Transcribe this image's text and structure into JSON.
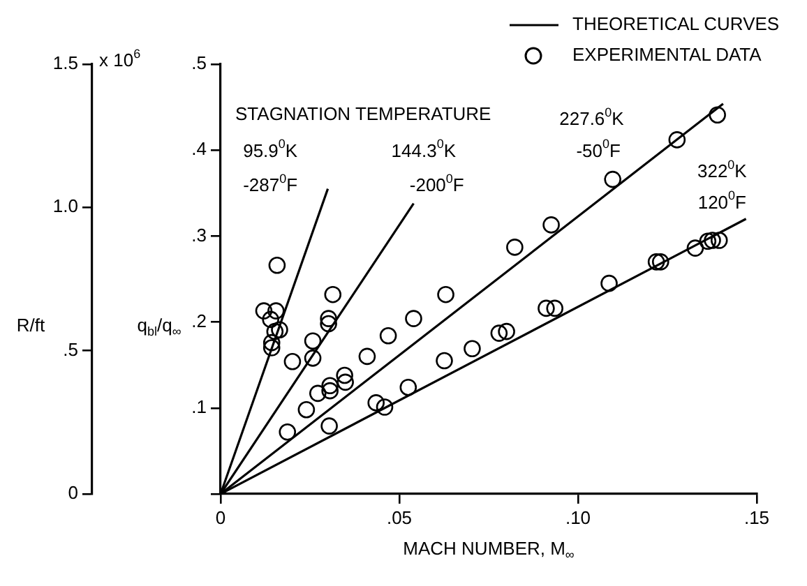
{
  "chart_data": {
    "type": "scatter",
    "xlabel": "MACH NUMBER, M$_{∞}$",
    "ylabel": "q$_{bl}$/q$_{∞}$",
    "y2label": "R/ft",
    "xlim": [
      0,
      0.15
    ],
    "xticks": [
      {
        "value": 0,
        "label": "0"
      },
      {
        "value": 0.05,
        "label": ".05"
      },
      {
        "value": 0.1,
        "label": ".10"
      },
      {
        "value": 0.15,
        "label": ".15"
      }
    ],
    "ylim": [
      0,
      0.5
    ],
    "yticks": [
      {
        "value": 0,
        "label": null
      },
      {
        "value": 0.1,
        "label": ".1"
      },
      {
        "value": 0.2,
        "label": ".2"
      },
      {
        "value": 0.3,
        "label": ".3"
      },
      {
        "value": 0.4,
        "label": ".4"
      },
      {
        "value": 0.5,
        "label": ".5"
      }
    ],
    "y2lim": [
      0,
      1.5
    ],
    "y2ticks": [
      {
        "value": 0,
        "label": "0"
      },
      {
        "value": 0.5,
        "label": ".5"
      },
      {
        "value": 1.0,
        "label": "1.0"
      },
      {
        "value": 1.5,
        "label": "1.5"
      }
    ],
    "grid": false,
    "legend": "top right",
    "marker": "circle",
    "line_style": "solid",
    "annotations": [
      "STAGNATION TEMPERATURE",
      "95.9$^{0}$K",
      "-287$^{0}$F",
      "144.3$^{0}$K",
      "-200$^{0}$F",
      "227.6$^{0}$K",
      "-50$^{0}$F",
      "322$^{0}$K",
      "120$^{0}$F",
      "x 10$^{6}$"
    ],
    "series": [
      {
        "type": "line",
        "name": "THEORETICAL CURVES",
        "marker": "none",
        "color": "#000000",
        "x": [
          0,
          0.03
        ],
        "values": [
          0,
          0.355
        ]
      },
      {
        "type": "line",
        "marker": "none",
        "color": "#000000",
        "x": [
          0,
          0.054
        ],
        "values": [
          0,
          0.338
        ]
      },
      {
        "type": "line",
        "marker": "none",
        "color": "#000000",
        "x": [
          0,
          0.1406
        ],
        "values": [
          0,
          0.454
        ]
      },
      {
        "type": "line",
        "marker": "none",
        "color": "#000000",
        "x": [
          0,
          0.147
        ],
        "values": [
          0,
          0.32
        ]
      },
      {
        "type": "scatter",
        "name": "EXPERIMENTAL DATA",
        "color": "#000000",
        "x": [
          0.0158,
          0.0121,
          0.0155,
          0.014,
          0.0152,
          0.0165,
          0.0143,
          0.0143
        ],
        "values": [
          0.266,
          0.213,
          0.213,
          0.203,
          0.189,
          0.191,
          0.176,
          0.17
        ]
      },
      {
        "type": "scatter",
        "color": "#000000",
        "x": [
          0.0201,
          0.0258,
          0.0258,
          0.0302,
          0.0302,
          0.0314
        ],
        "values": [
          0.154,
          0.178,
          0.158,
          0.204,
          0.198,
          0.232
        ]
      },
      {
        "type": "scatter",
        "color": "#000000",
        "x": [
          0.0187,
          0.024,
          0.0272,
          0.0306,
          0.0306,
          0.0347,
          0.0349,
          0.041,
          0.0469,
          0.054,
          0.063,
          0.0823,
          0.0925,
          0.1097,
          0.1277,
          0.139
        ],
        "values": [
          0.072,
          0.098,
          0.117,
          0.126,
          0.12,
          0.138,
          0.13,
          0.16,
          0.184,
          0.204,
          0.232,
          0.287,
          0.313,
          0.366,
          0.412,
          0.441
        ]
      },
      {
        "type": "scatter",
        "color": "#000000",
        "x": [
          0.0304,
          0.0435,
          0.0459,
          0.0525,
          0.0626,
          0.0704,
          0.0779,
          0.08,
          0.0911,
          0.0935,
          0.1087,
          0.1219,
          0.1231,
          0.1328,
          0.1363,
          0.1376,
          0.1395
        ],
        "values": [
          0.079,
          0.106,
          0.101,
          0.124,
          0.155,
          0.169,
          0.187,
          0.189,
          0.216,
          0.216,
          0.245,
          0.27,
          0.27,
          0.286,
          0.294,
          0.295,
          0.295
        ]
      }
    ]
  }
}
